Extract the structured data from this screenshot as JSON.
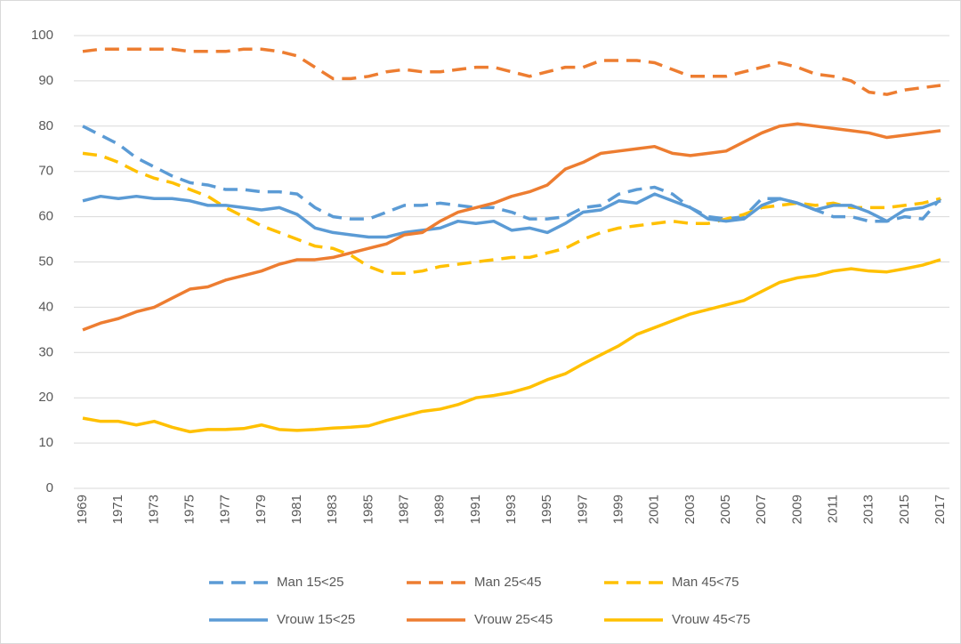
{
  "chart_data": {
    "type": "line",
    "categories": [
      "1969",
      null,
      "1971",
      null,
      "1973",
      null,
      "1975",
      null,
      "1977",
      null,
      "1979",
      null,
      "1981",
      null,
      "1983",
      null,
      "1985",
      null,
      "1987",
      null,
      "1989",
      null,
      "1991",
      null,
      "1993",
      null,
      "1995",
      null,
      "1997",
      null,
      "1999",
      null,
      "2001",
      null,
      "2003",
      null,
      "2005",
      null,
      "2007",
      null,
      "2009",
      null,
      "2011",
      null,
      "2013",
      null,
      "2015",
      null,
      "2017"
    ],
    "series": [
      {
        "name": "Man 15<25",
        "color": "#5b9bd5",
        "dashed": true,
        "values": [
          80,
          78,
          76,
          73,
          71,
          69,
          67.5,
          67,
          66,
          66,
          65.5,
          65.5,
          65,
          62,
          60,
          59.5,
          59.5,
          61,
          62.5,
          62.5,
          63,
          62.5,
          62,
          62,
          61,
          59.5,
          59.5,
          60,
          62,
          62.5,
          65,
          66,
          66.5,
          65,
          62,
          60,
          59.5,
          60,
          64,
          64,
          63,
          61.5,
          60,
          60,
          59,
          59,
          60,
          59.5,
          64
        ]
      },
      {
        "name": "Man 25<45",
        "color": "#ed7d31",
        "dashed": true,
        "values": [
          96.5,
          97,
          97,
          97,
          97,
          97,
          96.5,
          96.5,
          96.5,
          97,
          97,
          96.5,
          95.5,
          93,
          90.5,
          90.5,
          91,
          92,
          92.5,
          92,
          92,
          92.5,
          93,
          93,
          92,
          91,
          92,
          93,
          93,
          94.5,
          94.5,
          94.5,
          94,
          92.5,
          91,
          91,
          91,
          92,
          93,
          94,
          93,
          91.5,
          91,
          90,
          87.5,
          87,
          88,
          88.5,
          89
        ]
      },
      {
        "name": "Man 45<75",
        "color": "#ffc000",
        "dashed": true,
        "values": [
          74,
          73.5,
          72,
          70,
          68.5,
          67.5,
          66,
          64.5,
          62,
          60,
          58,
          56.5,
          55,
          53.5,
          53,
          51.5,
          49,
          47.5,
          47.5,
          48,
          49,
          49.5,
          50,
          50.5,
          51,
          51,
          52,
          53,
          55,
          56.5,
          57.5,
          58,
          58.5,
          59,
          58.5,
          58.5,
          59.5,
          60.5,
          62,
          62.5,
          63,
          62.5,
          63,
          62,
          62,
          62,
          62.5,
          63,
          64
        ]
      },
      {
        "name": "Vrouw 15<25",
        "color": "#5b9bd5",
        "dashed": false,
        "values": [
          63.5,
          64.5,
          64,
          64.5,
          64,
          64,
          63.5,
          62.5,
          62.5,
          62,
          61.5,
          62,
          60.5,
          57.5,
          56.5,
          56,
          55.5,
          55.5,
          56.5,
          57,
          57.5,
          59,
          58.5,
          59,
          57,
          57.5,
          56.5,
          58.5,
          61,
          61.5,
          63.5,
          63,
          65,
          63.5,
          62,
          59.5,
          59,
          59.5,
          62.5,
          64,
          63,
          61.5,
          62.5,
          62.5,
          61,
          59,
          61.5,
          62,
          63.5
        ]
      },
      {
        "name": "Vrouw 25<45",
        "color": "#ed7d31",
        "dashed": false,
        "values": [
          35,
          36.5,
          37.5,
          39,
          40,
          42,
          44,
          44.5,
          46,
          47,
          48,
          49.5,
          50.5,
          50.5,
          51,
          52,
          53,
          54,
          56,
          56.5,
          59,
          61,
          62,
          63,
          64.5,
          65.5,
          67,
          70.5,
          72,
          74,
          74.5,
          75,
          75.5,
          74,
          73.5,
          74,
          74.5,
          76.5,
          78.5,
          80,
          80.5,
          80,
          79.5,
          79,
          78.5,
          77.5,
          78,
          78.5,
          79
        ]
      },
      {
        "name": "Vrouw 45<75",
        "color": "#ffc000",
        "dashed": false,
        "values": [
          15.5,
          14.8,
          14.8,
          14,
          14.8,
          13.5,
          12.5,
          13,
          13,
          13.2,
          14,
          13,
          12.8,
          13,
          13.3,
          13.5,
          13.8,
          15,
          16,
          17,
          17.5,
          18.5,
          20,
          20.5,
          21.2,
          22.3,
          24,
          25.3,
          27.5,
          29.5,
          31.5,
          34,
          35.5,
          37,
          38.5,
          39.5,
          40.5,
          41.5,
          43.5,
          45.5,
          46.5,
          47,
          48,
          48.5,
          48,
          47.8,
          48.5,
          49.3,
          50.5
        ]
      }
    ],
    "ylim": [
      0,
      100
    ],
    "yticks": [
      0,
      10,
      20,
      30,
      40,
      50,
      60,
      70,
      80,
      90,
      100
    ],
    "grid": true,
    "legend": "bottom"
  }
}
